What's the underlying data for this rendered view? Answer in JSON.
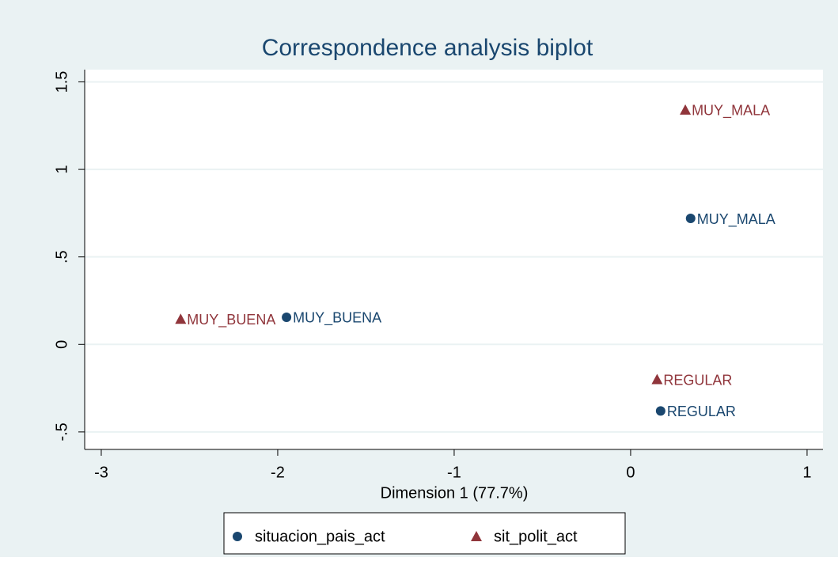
{
  "chart_data": {
    "type": "scatter",
    "title": "Correspondence analysis biplot",
    "x_label": "Dimension 1 (77.7%)",
    "xlim": [
      -3.094,
      1.09
    ],
    "ylim": [
      -0.6,
      1.57
    ],
    "xticks": [
      -3,
      -2,
      -1,
      0,
      1
    ],
    "yticks": [
      {
        "value": -0.5,
        "label": "-.5"
      },
      0,
      {
        "value": 0.5,
        "label": ".5"
      },
      1,
      1.5
    ],
    "grid": true,
    "legend": "bottom",
    "series": [
      {
        "name": "situacion_pais_act",
        "color": "#1a476f",
        "marker": "circle",
        "x": [
          0.34,
          -1.95,
          0.17
        ],
        "values": [
          0.72,
          0.155,
          -0.38
        ],
        "labels": [
          "MUY_MALA",
          "MUY_BUENA",
          "REGULAR"
        ]
      },
      {
        "name": "sit_polit_act",
        "color": "#90353b",
        "marker": "triangle",
        "x": [
          0.31,
          -2.55,
          0.15
        ],
        "values": [
          1.34,
          0.145,
          -0.2
        ],
        "labels": [
          "MUY_MALA",
          "MUY_BUENA",
          "REGULAR"
        ]
      }
    ]
  }
}
